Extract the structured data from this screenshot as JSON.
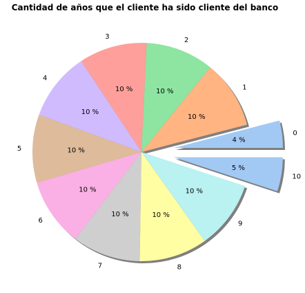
{
  "chart_data": {
    "type": "pie",
    "title": "Cantidad de años que el cliente ha sido cliente del banco",
    "slices": [
      {
        "label": "0",
        "value": 4,
        "pct_label": "4 %",
        "color": "#a1c9f4",
        "explode": true
      },
      {
        "label": "1",
        "value": 10,
        "pct_label": "10 %",
        "color": "#ffb482",
        "explode": false
      },
      {
        "label": "2",
        "value": 10,
        "pct_label": "10 %",
        "color": "#8de5a1",
        "explode": false
      },
      {
        "label": "3",
        "value": 10,
        "pct_label": "10 %",
        "color": "#ff9f9b",
        "explode": false
      },
      {
        "label": "4",
        "value": 10,
        "pct_label": "10 %",
        "color": "#d0bbff",
        "explode": false
      },
      {
        "label": "5",
        "value": 10,
        "pct_label": "10 %",
        "color": "#debb9b",
        "explode": false
      },
      {
        "label": "6",
        "value": 10,
        "pct_label": "10 %",
        "color": "#fab0e4",
        "explode": false
      },
      {
        "label": "7",
        "value": 10,
        "pct_label": "10 %",
        "color": "#cfcfcf",
        "explode": false
      },
      {
        "label": "8",
        "value": 10,
        "pct_label": "10 %",
        "color": "#fffea3",
        "explode": false
      },
      {
        "label": "9",
        "value": 10,
        "pct_label": "10 %",
        "color": "#b9f2f0",
        "explode": false
      },
      {
        "label": "10",
        "value": 5,
        "pct_label": "5 %",
        "color": "#a1c9f4",
        "explode": true
      }
    ],
    "shadow": true,
    "legend": false
  }
}
